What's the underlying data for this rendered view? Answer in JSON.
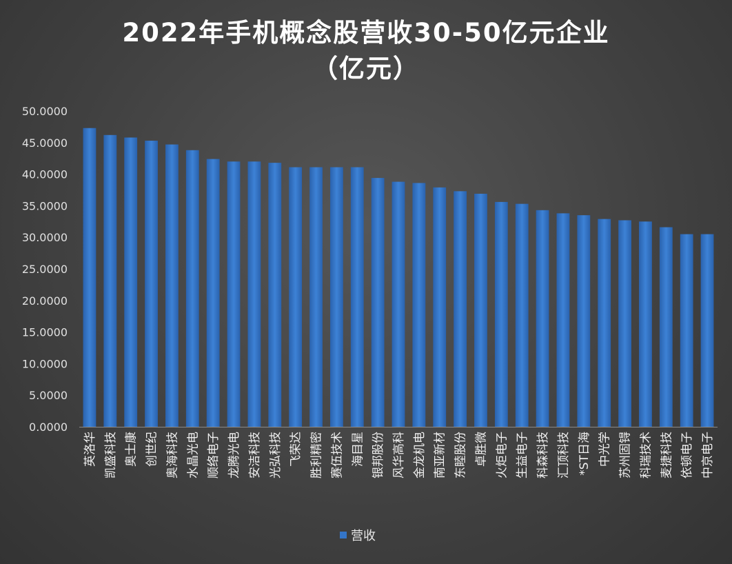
{
  "chart_data": {
    "type": "bar",
    "title": "2022年手机概念股营收30-50亿元企业",
    "subtitle": "（亿元）",
    "xlabel": "",
    "ylabel": "",
    "ylim": [
      0,
      50
    ],
    "yticks": [
      "0.0000",
      "5.0000",
      "10.0000",
      "15.0000",
      "20.0000",
      "25.0000",
      "30.0000",
      "35.0000",
      "40.0000",
      "45.0000",
      "50.0000"
    ],
    "grid": false,
    "legend_position": "bottom",
    "bar_color": "#3475c8",
    "categories": [
      "英洛华",
      "凯盛科技",
      "奥士康",
      "创世纪",
      "奥海科技",
      "水晶光电",
      "顺络电子",
      "龙腾光电",
      "安洁科技",
      "光弘科技",
      "飞荣达",
      "胜利精密",
      "赛伍技术",
      "海目星",
      "银邦股份",
      "风华高科",
      "金龙机电",
      "南亚新材",
      "东睦股份",
      "卓胜微",
      "火炬电子",
      "生益电子",
      "科森科技",
      "汇顶科技",
      "*ST日海",
      "中光学",
      "苏州固锝",
      "科瑞技术",
      "麦捷科技",
      "依顿电子",
      "中京电子"
    ],
    "series": [
      {
        "name": "营收",
        "values": [
          47.3,
          46.2,
          45.8,
          45.3,
          44.7,
          43.8,
          42.4,
          42.0,
          42.0,
          41.8,
          41.1,
          41.1,
          41.1,
          41.1,
          39.4,
          38.8,
          38.6,
          37.9,
          37.3,
          36.9,
          35.6,
          35.3,
          34.3,
          33.8,
          33.5,
          32.9,
          32.7,
          32.5,
          31.6,
          30.5,
          30.5
        ]
      }
    ]
  }
}
